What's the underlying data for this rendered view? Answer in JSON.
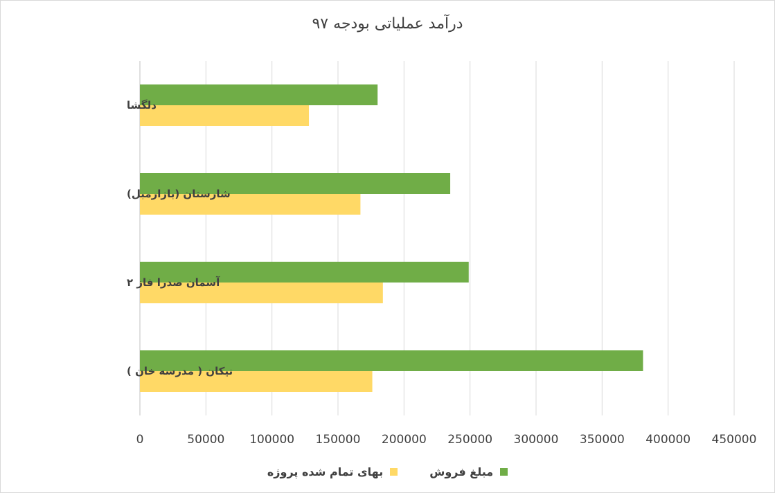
{
  "chart_data": {
    "type": "bar",
    "orientation": "horizontal",
    "title": "درآمد عملیاتی بودجه ۹۷",
    "categories": [
      "دلگشا",
      "شارستان (بازارمبل)",
      "آسمان صدرا فاز ۲",
      "نیکان ( مدرسه خان )"
    ],
    "series": [
      {
        "name": "مبلغ فروش",
        "color": "#70ad47",
        "values": [
          180000,
          235000,
          249000,
          381000
        ]
      },
      {
        "name": "بهای تمام شده پروژه",
        "color": "#ffd966",
        "values": [
          128000,
          167000,
          184000,
          176000
        ]
      }
    ],
    "xlim": [
      0,
      450000
    ],
    "xticks": [
      0,
      50000,
      100000,
      150000,
      200000,
      250000,
      300000,
      350000,
      400000,
      450000
    ],
    "tick_labels": [
      "0",
      "50000",
      "100000",
      "150000",
      "200000",
      "250000",
      "300000",
      "350000",
      "400000",
      "450000"
    ],
    "grid": true,
    "legend_position": "bottom"
  }
}
